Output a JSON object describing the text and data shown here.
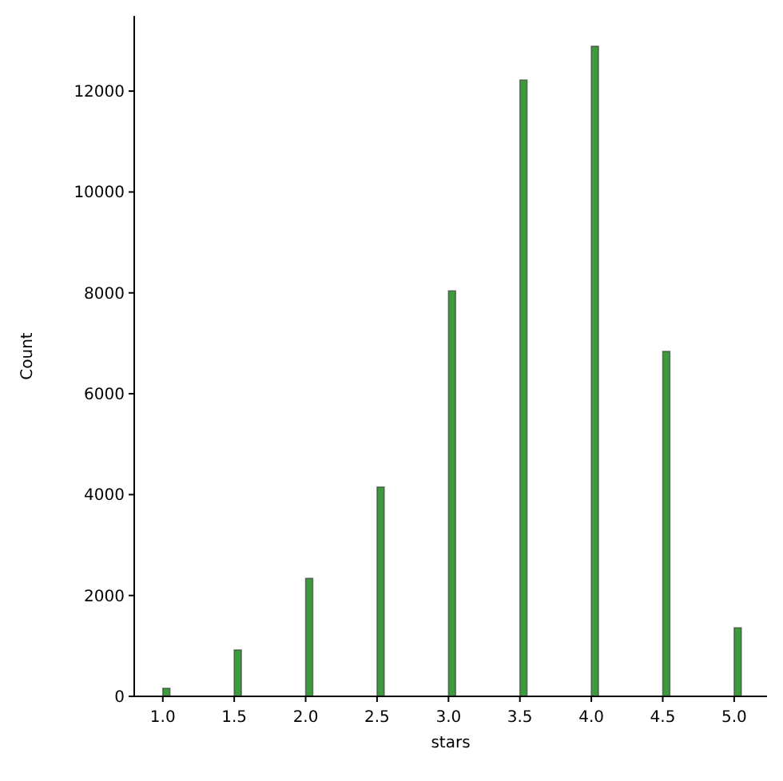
{
  "chart_data": {
    "type": "histogram",
    "xlabel": "stars",
    "ylabel": "Count",
    "bins": [
      1.0,
      1.05,
      1.5,
      1.55,
      2.0,
      2.05,
      2.5,
      2.55,
      3.0,
      3.05,
      3.5,
      3.55,
      4.0,
      4.05,
      4.5,
      4.55,
      5.0,
      5.05
    ],
    "values": [
      160,
      0,
      920,
      0,
      2340,
      0,
      4150,
      0,
      8040,
      0,
      12220,
      0,
      12890,
      0,
      6840,
      0,
      1360
    ],
    "color": "#3d9a3d",
    "xlim": [
      0.8,
      5.23
    ],
    "xticks": [
      {
        "value": 1,
        "label": "1.0"
      },
      {
        "value": 1.5,
        "label": "1.5"
      },
      {
        "value": 2,
        "label": "2.0"
      },
      {
        "value": 2.5,
        "label": "2.5"
      },
      {
        "value": 3,
        "label": "3.0"
      },
      {
        "value": 3.5,
        "label": "3.5"
      },
      {
        "value": 4,
        "label": "4.0"
      },
      {
        "value": 4.5,
        "label": "4.5"
      },
      {
        "value": 5,
        "label": "5.0"
      }
    ],
    "ylim": [
      0,
      13490
    ],
    "yticks": [
      0,
      2000,
      4000,
      6000,
      8000,
      10000,
      12000
    ],
    "grid": false
  }
}
